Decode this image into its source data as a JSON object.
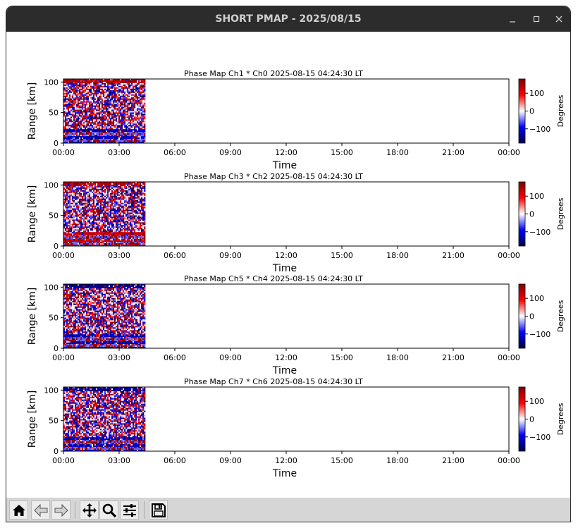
{
  "window": {
    "title": "SHORT PMAP - 2025/08/15",
    "controls": [
      "minimize",
      "maximize",
      "close"
    ]
  },
  "toolbar": {
    "buttons": [
      {
        "name": "home",
        "icon": "home-icon"
      },
      {
        "name": "back",
        "icon": "back-arrow-icon"
      },
      {
        "name": "forward",
        "icon": "forward-arrow-icon"
      },
      {
        "name": "pan",
        "icon": "move-icon"
      },
      {
        "name": "zoom",
        "icon": "magnifier-icon"
      },
      {
        "name": "configure",
        "icon": "sliders-icon"
      },
      {
        "name": "save",
        "icon": "floppy-icon"
      }
    ]
  },
  "chart_data": [
    {
      "type": "heatmap",
      "title": "Phase Map Ch1 * Ch0 2025-08-15 04:24:30 LT",
      "xlabel": "Time",
      "ylabel": "Range [km]",
      "x_ticks": [
        "00:00",
        "03:00",
        "06:00",
        "09:00",
        "12:00",
        "15:00",
        "18:00",
        "21:00",
        "00:00"
      ],
      "xlim_hours": [
        0,
        24
      ],
      "data_extent_hours": [
        0,
        4.408
      ],
      "y_ticks": [
        0,
        50,
        100
      ],
      "ylim": [
        0,
        105
      ],
      "colorbar": {
        "label": "Degrees",
        "ticks": [
          100,
          0,
          -100
        ],
        "range": [
          -180,
          180
        ],
        "cmap": "seismic"
      },
      "pattern": {
        "top_band": "red",
        "low_band": "blue"
      }
    },
    {
      "type": "heatmap",
      "title": "Phase Map Ch3 * Ch2 2025-08-15 04:24:30 LT",
      "xlabel": "Time",
      "ylabel": "Range [km]",
      "x_ticks": [
        "00:00",
        "03:00",
        "06:00",
        "09:00",
        "12:00",
        "15:00",
        "18:00",
        "21:00",
        "00:00"
      ],
      "xlim_hours": [
        0,
        24
      ],
      "data_extent_hours": [
        0,
        4.408
      ],
      "y_ticks": [
        0,
        50,
        100
      ],
      "ylim": [
        0,
        105
      ],
      "colorbar": {
        "label": "Degrees",
        "ticks": [
          100,
          0,
          -100
        ],
        "range": [
          -180,
          180
        ],
        "cmap": "seismic"
      },
      "pattern": {
        "top_band": "red",
        "low_band": "red"
      }
    },
    {
      "type": "heatmap",
      "title": "Phase Map Ch5 * Ch4 2025-08-15 04:24:30 LT",
      "xlabel": "Time",
      "ylabel": "Range [km]",
      "x_ticks": [
        "00:00",
        "03:00",
        "06:00",
        "09:00",
        "12:00",
        "15:00",
        "18:00",
        "21:00",
        "00:00"
      ],
      "xlim_hours": [
        0,
        24
      ],
      "data_extent_hours": [
        0,
        4.408
      ],
      "y_ticks": [
        0,
        50,
        100
      ],
      "ylim": [
        0,
        105
      ],
      "colorbar": {
        "label": "Degrees",
        "ticks": [
          100,
          0,
          -100
        ],
        "range": [
          -180,
          180
        ],
        "cmap": "seismic"
      },
      "pattern": {
        "top_band": "blue",
        "low_band": "blue"
      }
    },
    {
      "type": "heatmap",
      "title": "Phase Map Ch7 * Ch6 2025-08-15 04:24:30 LT",
      "xlabel": "Time",
      "ylabel": "Range [km]",
      "x_ticks": [
        "00:00",
        "03:00",
        "06:00",
        "09:00",
        "12:00",
        "15:00",
        "18:00",
        "21:00",
        "00:00"
      ],
      "xlim_hours": [
        0,
        24
      ],
      "data_extent_hours": [
        0,
        4.408
      ],
      "y_ticks": [
        0,
        50,
        100
      ],
      "ylim": [
        0,
        105
      ],
      "colorbar": {
        "label": "Degrees",
        "ticks": [
          100,
          0,
          -100
        ],
        "range": [
          -180,
          180
        ],
        "cmap": "seismic"
      },
      "pattern": {
        "top_band": "blue",
        "low_band": "blue"
      }
    }
  ]
}
